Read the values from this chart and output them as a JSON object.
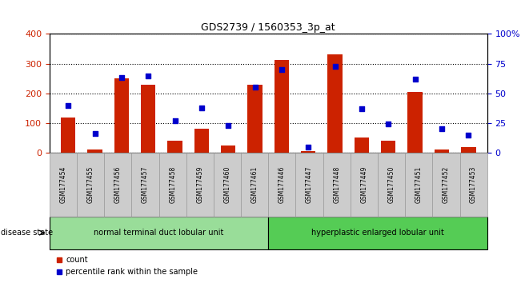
{
  "title": "GDS2739 / 1560353_3p_at",
  "categories": [
    "GSM177454",
    "GSM177455",
    "GSM177456",
    "GSM177457",
    "GSM177458",
    "GSM177459",
    "GSM177460",
    "GSM177461",
    "GSM177446",
    "GSM177447",
    "GSM177448",
    "GSM177449",
    "GSM177450",
    "GSM177451",
    "GSM177452",
    "GSM177453"
  ],
  "counts": [
    120,
    10,
    250,
    228,
    40,
    80,
    25,
    228,
    312,
    5,
    330,
    52,
    40,
    205,
    10,
    18
  ],
  "percentiles": [
    40,
    16,
    63,
    65,
    27,
    38,
    23,
    55,
    70,
    5,
    73,
    37,
    24,
    62,
    20,
    15
  ],
  "ylim_left": [
    0,
    400
  ],
  "ylim_right": [
    0,
    100
  ],
  "yticks_left": [
    0,
    100,
    200,
    300,
    400
  ],
  "yticks_right": [
    0,
    25,
    50,
    75,
    100
  ],
  "bar_color": "#cc2200",
  "scatter_color": "#0000cc",
  "grid_color": "#000000",
  "group1_label": "normal terminal duct lobular unit",
  "group2_label": "hyperplastic enlarged lobular unit",
  "group1_color": "#99dd99",
  "group2_color": "#55cc55",
  "disease_state_label": "disease state",
  "legend_count_label": "count",
  "legend_pct_label": "percentile rank within the sample",
  "xlabel_color_left": "#cc2200",
  "xlabel_color_right": "#0000cc",
  "bar_width": 0.55,
  "xticklabel_bg": "#cccccc",
  "figwidth": 6.51,
  "figheight": 3.54,
  "dpi": 100
}
